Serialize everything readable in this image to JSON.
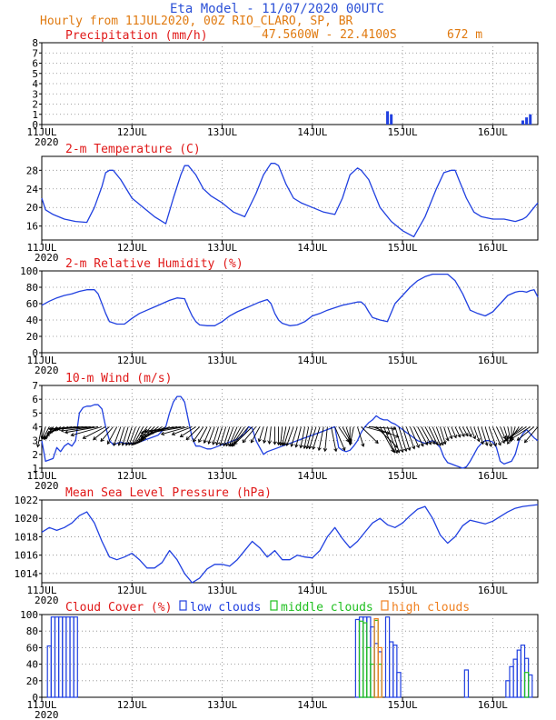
{
  "header": {
    "title": "Eta Model - 11/07/2020 00UTC",
    "subtitle": "Hourly from 11JUL2020, 00Z  RIO_CLARO, SP, BR",
    "coords": "47.5600W - 22.4100S",
    "altitude": "672  m"
  },
  "colors": {
    "title": "#2a4fd6",
    "subtitle": "#e07a10",
    "panel_title": "#e01818",
    "line": "#2040e0",
    "green": "#20c020",
    "orange": "#f08020"
  },
  "x_axis": {
    "ticks": [
      "11JUL",
      "12JUL",
      "13JUL",
      "14JUL",
      "15JUL",
      "16JUL"
    ],
    "year": "2020",
    "hours_total": 132
  },
  "chart_data": [
    {
      "type": "bar",
      "id": "precip",
      "title": "Precipitation (mm/h)",
      "ylim": [
        0,
        8
      ],
      "yticks": [
        0,
        1,
        2,
        3,
        4,
        5,
        6,
        7,
        8
      ],
      "bars": [
        {
          "hour": 92,
          "value": 1.3
        },
        {
          "hour": 93,
          "value": 1.0
        },
        {
          "hour": 128,
          "value": 0.4
        },
        {
          "hour": 129,
          "value": 0.7
        },
        {
          "hour": 130,
          "value": 1.0
        }
      ]
    },
    {
      "type": "line",
      "id": "temp",
      "title": "2-m Temperature (C)",
      "ylim": [
        13,
        31
      ],
      "yticks": [
        16,
        20,
        24,
        28
      ],
      "x": [
        0,
        1,
        3,
        6,
        9,
        12,
        14,
        16,
        17,
        18,
        19,
        21,
        24,
        27,
        30,
        33,
        35,
        37,
        38,
        39,
        41,
        43,
        45,
        48,
        51,
        54,
        57,
        59,
        61,
        62,
        63,
        65,
        67,
        69,
        72,
        75,
        78,
        80,
        82,
        84,
        85,
        86,
        87,
        88,
        90,
        93,
        96,
        99,
        102,
        105,
        107,
        109,
        110,
        111,
        113,
        115,
        117,
        120,
        123,
        126,
        128,
        129,
        130,
        131,
        132
      ],
      "values": [
        22,
        19.5,
        18.5,
        17.5,
        17,
        16.8,
        20,
        24.5,
        27.5,
        28,
        28,
        26,
        22,
        20,
        18,
        16.5,
        22,
        27,
        29,
        29,
        27,
        24,
        22.5,
        21,
        19,
        18,
        23,
        27,
        29.5,
        29.5,
        29,
        25,
        22,
        21,
        20,
        19,
        18.5,
        22,
        27,
        28.5,
        28,
        27,
        26,
        24,
        20,
        17,
        15,
        13.7,
        18,
        24,
        27.5,
        28,
        28,
        26,
        22,
        19,
        18,
        17.5,
        17.5,
        17,
        17.5,
        18,
        19,
        20,
        21
      ]
    },
    {
      "type": "line",
      "id": "rh",
      "title": "2-m Relative Humidity (%)",
      "ylim": [
        0,
        100
      ],
      "yticks": [
        0,
        20,
        40,
        60,
        80,
        100
      ],
      "x": [
        0,
        2,
        4,
        6,
        8,
        10,
        12,
        14,
        15,
        16,
        17,
        18,
        20,
        22,
        24,
        26,
        28,
        30,
        32,
        34,
        36,
        38,
        39,
        40,
        41,
        42,
        44,
        46,
        48,
        50,
        52,
        54,
        56,
        58,
        60,
        61,
        62,
        63,
        64,
        66,
        68,
        70,
        72,
        74,
        76,
        78,
        80,
        82,
        84,
        85,
        86,
        87,
        88,
        90,
        92,
        94,
        96,
        98,
        100,
        102,
        104,
        106,
        108,
        110,
        112,
        113,
        114,
        116,
        118,
        120,
        122,
        124,
        126,
        127,
        128,
        129,
        130,
        131,
        132
      ],
      "values": [
        58,
        63,
        67,
        70,
        72,
        75,
        77,
        77,
        72,
        60,
        48,
        38,
        35,
        35,
        42,
        48,
        52,
        56,
        60,
        64,
        67,
        66,
        55,
        45,
        38,
        34,
        33,
        33,
        38,
        45,
        50,
        54,
        58,
        62,
        65,
        60,
        48,
        40,
        36,
        33,
        34,
        38,
        45,
        48,
        52,
        55,
        58,
        60,
        62,
        62,
        58,
        50,
        43,
        40,
        38,
        60,
        70,
        80,
        88,
        93,
        96,
        96,
        96,
        88,
        72,
        62,
        52,
        48,
        45,
        50,
        60,
        70,
        74,
        75,
        75,
        74,
        76,
        77,
        68
      ]
    },
    {
      "type": "line",
      "id": "wind",
      "title": "10-m Wind (m/s)",
      "ylim": [
        1,
        7
      ],
      "yticks": [
        1,
        2,
        3,
        4,
        5,
        6,
        7
      ],
      "x": [
        0,
        1,
        2,
        3,
        4,
        5,
        6,
        7,
        8,
        9,
        10,
        11,
        12,
        13,
        14,
        15,
        16,
        17,
        18,
        19,
        20,
        21,
        22,
        23,
        24,
        25,
        26,
        27,
        28,
        29,
        30,
        31,
        32,
        33,
        34,
        35,
        36,
        37,
        38,
        39,
        40,
        41,
        42,
        43,
        44,
        45,
        46,
        47,
        48,
        49,
        50,
        51,
        52,
        53,
        54,
        55,
        56,
        57,
        58,
        59,
        60,
        61,
        62,
        63,
        64,
        65,
        66,
        67,
        68,
        69,
        70,
        71,
        72,
        73,
        74,
        75,
        76,
        77,
        78,
        79,
        80,
        81,
        82,
        83,
        84,
        85,
        86,
        87,
        88,
        89,
        90,
        91,
        92,
        93,
        94,
        95,
        96,
        97,
        98,
        99,
        100,
        101,
        102,
        103,
        104,
        105,
        106,
        107,
        108,
        109,
        110,
        111,
        112,
        113,
        114,
        115,
        116,
        117,
        118,
        119,
        120,
        121,
        122,
        123,
        124,
        125,
        126,
        127,
        128,
        129,
        130,
        131,
        132
      ],
      "values": [
        3.0,
        1.5,
        1.6,
        1.7,
        2.5,
        2.2,
        2.6,
        2.8,
        2.6,
        3.0,
        5.0,
        5.4,
        5.5,
        5.5,
        5.6,
        5.6,
        5.3,
        4.0,
        3.0,
        2.7,
        2.8,
        2.9,
        2.8,
        2.8,
        2.8,
        2.8,
        2.9,
        3.0,
        3.1,
        3.2,
        3.3,
        3.4,
        3.7,
        4.0,
        5.0,
        5.8,
        6.2,
        6.2,
        5.8,
        4.5,
        3.2,
        2.6,
        2.6,
        2.5,
        2.4,
        2.4,
        2.5,
        2.6,
        2.7,
        2.8,
        2.9,
        3.0,
        3.1,
        3.3,
        3.5,
        4.0,
        3.9,
        3.0,
        2.5,
        2.0,
        2.2,
        2.3,
        2.4,
        2.5,
        2.6,
        2.7,
        2.8,
        2.9,
        3.0,
        3.1,
        3.2,
        3.3,
        3.4,
        3.5,
        3.6,
        3.7,
        3.8,
        3.9,
        4.0,
        2.5,
        2.3,
        2.2,
        2.3,
        2.6,
        3.0,
        3.6,
        4.0,
        4.3,
        4.5,
        4.8,
        4.6,
        4.5,
        4.5,
        4.3,
        4.2,
        4.0,
        3.8,
        3.6,
        3.4,
        3.2,
        3.0,
        2.9,
        2.8,
        2.9,
        3.0,
        2.8,
        2.5,
        1.8,
        1.4,
        1.3,
        1.2,
        1.1,
        1.0,
        1.1,
        1.5,
        2.0,
        2.5,
        2.8,
        3.0,
        3.0,
        2.9,
        2.5,
        1.5,
        1.3,
        1.4,
        1.5,
        2.0,
        3.0,
        3.5,
        3.8,
        3.5,
        3.2,
        3.0
      ],
      "barbs_dir": [
        -0.2,
        -0.3,
        -0.5,
        -0.6,
        -0.8,
        -1.0,
        -1.2,
        -1.3,
        -1.4,
        -1.45,
        -1.5,
        -1.5,
        -1.5,
        -1.5,
        -1.45,
        -1.4,
        -1.3,
        -1.1,
        -0.9,
        -0.7,
        -0.5,
        -0.35,
        -0.3,
        -0.3,
        -0.3,
        -0.35,
        -0.4,
        -0.5,
        -0.6,
        -0.7,
        -0.8,
        -0.9,
        -1.0,
        -1.1,
        -1.2,
        -1.3,
        -1.4,
        -1.45,
        -1.4,
        -1.3,
        -1.2,
        -1.0,
        -0.8,
        -0.6,
        -0.5,
        -0.4,
        -0.35,
        -0.3,
        -0.3,
        -0.3,
        -0.3,
        -0.35,
        -0.4,
        -0.5,
        -0.6,
        -0.7,
        -0.8,
        -0.7,
        -0.5,
        -0.3,
        -0.2,
        -0.1,
        0.0,
        0.0,
        -0.1,
        -0.2,
        -0.3,
        -0.35,
        -0.3,
        -0.25,
        -0.2,
        -0.2,
        -0.25,
        -0.3,
        -0.3,
        -0.2,
        -0.1,
        0.2,
        0.4,
        0.6,
        0.5,
        0.3,
        0.0,
        -0.2,
        0.3,
        0.8,
        1.3,
        1.5,
        1.2,
        0.8,
        0.5,
        0.4,
        0.35,
        0.3,
        0.3,
        0.3,
        0.3,
        0.35,
        0.4,
        0.45,
        0.5,
        0.5,
        0.5,
        0.45,
        0.4,
        0.35,
        0.3,
        0.3,
        0.35,
        0.4,
        0.45,
        0.5,
        0.5,
        0.45,
        0.4,
        0.35,
        0.3,
        0.3,
        0.3,
        0.35,
        0.4,
        0.45,
        0.4,
        0.3,
        0.2,
        0.0,
        -0.3,
        -0.6,
        -0.9,
        -1.0,
        -1.0,
        -0.9,
        -0.7
      ]
    },
    {
      "type": "line",
      "id": "pressure",
      "title": "Mean Sea Level Pressure (hPa)",
      "ylim": [
        1013,
        1022
      ],
      "yticks": [
        1014,
        1016,
        1018,
        1020,
        1022
      ],
      "x": [
        0,
        2,
        4,
        6,
        8,
        10,
        12,
        14,
        16,
        18,
        20,
        22,
        24,
        26,
        28,
        30,
        32,
        34,
        36,
        38,
        40,
        42,
        44,
        46,
        48,
        50,
        52,
        54,
        56,
        58,
        60,
        62,
        64,
        66,
        68,
        70,
        72,
        74,
        76,
        78,
        80,
        82,
        84,
        86,
        88,
        90,
        92,
        94,
        96,
        98,
        100,
        102,
        104,
        106,
        108,
        110,
        112,
        114,
        116,
        118,
        120,
        122,
        124,
        126,
        128,
        130,
        132
      ],
      "values": [
        1018.5,
        1019,
        1018.7,
        1019,
        1019.5,
        1020.3,
        1020.7,
        1019.5,
        1017.5,
        1015.8,
        1015.5,
        1015.8,
        1016.2,
        1015.5,
        1014.6,
        1014.6,
        1015.2,
        1016.5,
        1015.5,
        1014,
        1013,
        1013.5,
        1014.5,
        1015,
        1015,
        1014.8,
        1015.5,
        1016.5,
        1017.5,
        1016.8,
        1015.8,
        1016.5,
        1015.5,
        1015.5,
        1016,
        1015.8,
        1015.7,
        1016.5,
        1018,
        1019,
        1017.8,
        1016.8,
        1017.5,
        1018.5,
        1019.5,
        1020,
        1019.3,
        1019,
        1019.5,
        1020.3,
        1021,
        1021.3,
        1020,
        1018.2,
        1017.3,
        1018,
        1019.2,
        1019.8,
        1019.6,
        1019.4,
        1019.7,
        1020.2,
        1020.7,
        1021.1,
        1021.3,
        1021.4,
        1021.5
      ]
    },
    {
      "type": "bar",
      "id": "cloud",
      "title": "Cloud Cover (%)",
      "ylim": [
        0,
        100
      ],
      "yticks": [
        0,
        20,
        40,
        60,
        80,
        100
      ],
      "legend": [
        {
          "label": "low clouds",
          "color": "#2040e0"
        },
        {
          "label": "middle clouds",
          "color": "#20c020"
        },
        {
          "label": "high clouds",
          "color": "#f08020"
        }
      ],
      "low": [
        {
          "hour": 2,
          "value": 62
        },
        {
          "hour": 3,
          "value": 97
        },
        {
          "hour": 4,
          "value": 97
        },
        {
          "hour": 5,
          "value": 97
        },
        {
          "hour": 6,
          "value": 97
        },
        {
          "hour": 7,
          "value": 97
        },
        {
          "hour": 8,
          "value": 97
        },
        {
          "hour": 9,
          "value": 97
        },
        {
          "hour": 84,
          "value": 94
        },
        {
          "hour": 85,
          "value": 97
        },
        {
          "hour": 86,
          "value": 97
        },
        {
          "hour": 87,
          "value": 97
        },
        {
          "hour": 88,
          "value": 85
        },
        {
          "hour": 89,
          "value": 65
        },
        {
          "hour": 90,
          "value": 55
        },
        {
          "hour": 92,
          "value": 97
        },
        {
          "hour": 93,
          "value": 67
        },
        {
          "hour": 94,
          "value": 63
        },
        {
          "hour": 95,
          "value": 30
        },
        {
          "hour": 113,
          "value": 33
        },
        {
          "hour": 124,
          "value": 20
        },
        {
          "hour": 125,
          "value": 37
        },
        {
          "hour": 126,
          "value": 46
        },
        {
          "hour": 127,
          "value": 57
        },
        {
          "hour": 128,
          "value": 63
        },
        {
          "hour": 129,
          "value": 47
        },
        {
          "hour": 130,
          "value": 27
        }
      ],
      "middle": [
        {
          "hour": 85,
          "value": 92
        },
        {
          "hour": 86,
          "value": 90
        },
        {
          "hour": 87,
          "value": 60
        },
        {
          "hour": 88,
          "value": 40
        },
        {
          "hour": 89,
          "value": 93
        },
        {
          "hour": 90,
          "value": 40
        },
        {
          "hour": 129,
          "value": 30
        }
      ],
      "high": [
        {
          "hour": 89,
          "value": 95
        },
        {
          "hour": 90,
          "value": 60
        }
      ]
    }
  ]
}
